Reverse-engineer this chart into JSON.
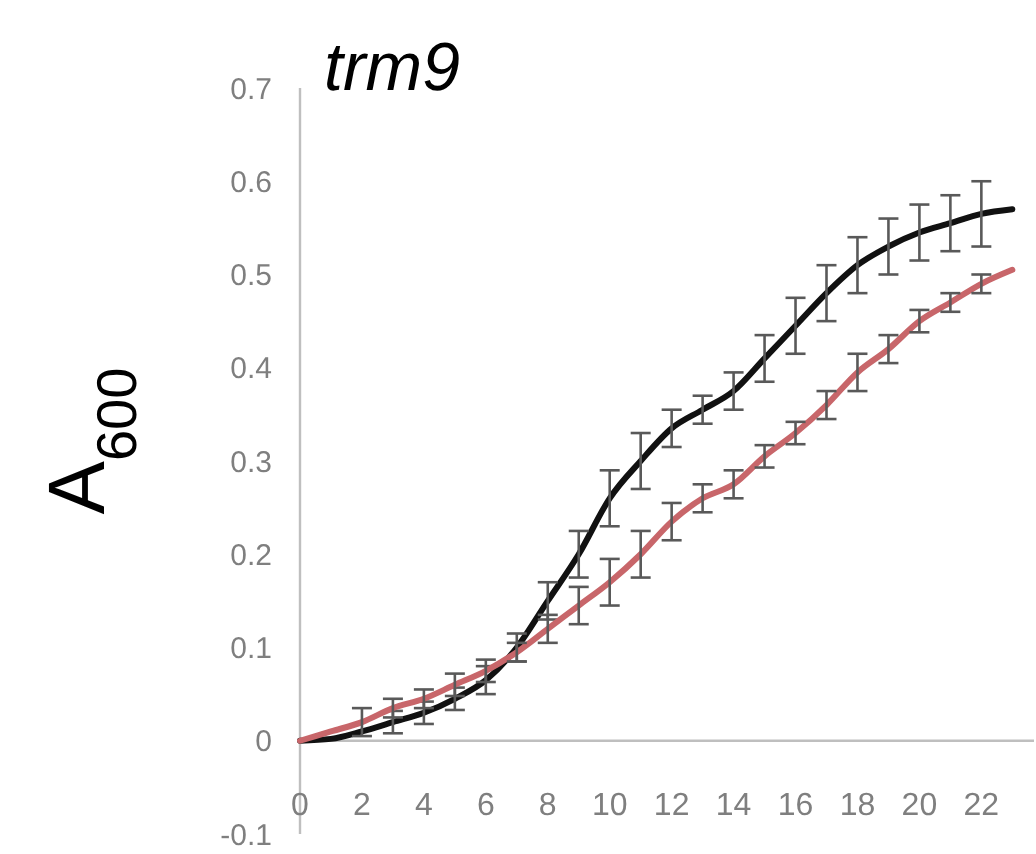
{
  "chart_data": {
    "type": "line",
    "title": "trm9",
    "ylabel": "A$_{600}$",
    "x": [
      0,
      1,
      2,
      3,
      4,
      5,
      6,
      7,
      8,
      9,
      10,
      11,
      12,
      13,
      14,
      15,
      16,
      17,
      18,
      19,
      20,
      21,
      22,
      23
    ],
    "series": [
      {
        "color": "#111111",
        "values": [
          0,
          0.002,
          0.01,
          0.02,
          0.03,
          0.045,
          0.065,
          0.1,
          0.15,
          0.2,
          0.26,
          0.3,
          0.335,
          0.355,
          0.375,
          0.41,
          0.445,
          0.48,
          0.51,
          0.53,
          0.545,
          0.555,
          0.565,
          0.57
        ],
        "errors": [
          null,
          null,
          null,
          0.012,
          0.012,
          0.012,
          0.015,
          0.015,
          0.02,
          0.025,
          0.03,
          0.03,
          0.02,
          0.015,
          0.02,
          0.025,
          0.03,
          0.03,
          0.03,
          0.03,
          0.03,
          0.03,
          0.035,
          null
        ]
      },
      {
        "color": "#c8666a",
        "values": [
          0,
          0.01,
          0.02,
          0.035,
          0.045,
          0.06,
          0.075,
          0.095,
          0.12,
          0.145,
          0.17,
          0.2,
          0.235,
          0.26,
          0.275,
          0.305,
          0.33,
          0.36,
          0.395,
          0.42,
          0.45,
          0.47,
          0.49,
          0.505
        ],
        "errors": [
          null,
          null,
          0.015,
          0.01,
          0.01,
          0.012,
          0.012,
          0.01,
          0.015,
          0.02,
          0.025,
          0.025,
          0.02,
          0.015,
          0.015,
          0.012,
          0.012,
          0.015,
          0.02,
          0.015,
          0.012,
          0.01,
          0.01,
          null
        ]
      }
    ],
    "xlim": [
      0,
      23.7
    ],
    "xticks": [
      0,
      2,
      4,
      6,
      8,
      10,
      12,
      14,
      16,
      18,
      20,
      22
    ],
    "ylim": [
      -0.1,
      0.7
    ],
    "yticks": [
      -0.1,
      0,
      0.1,
      0.2,
      0.3,
      0.4,
      0.5,
      0.6,
      0.7
    ],
    "grid": false,
    "marker": "none",
    "line_style": "solid"
  }
}
